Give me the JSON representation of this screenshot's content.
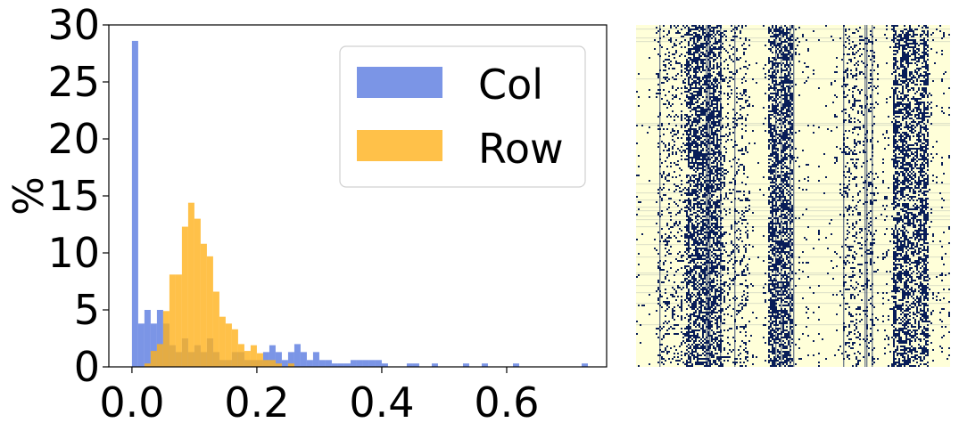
{
  "chart_data": [
    {
      "type": "bar",
      "subtype": "overlapping-histogram",
      "ylabel": "%",
      "xlabel": "",
      "xlim": [
        -0.037,
        0.76
      ],
      "ylim": [
        0,
        30
      ],
      "xticks": [
        0.0,
        0.2,
        0.4,
        0.6
      ],
      "xtick_labels": [
        "0.0",
        "0.2",
        "0.4",
        "0.6"
      ],
      "yticks": [
        0,
        5,
        10,
        15,
        20,
        25,
        30
      ],
      "ytick_labels": [
        "0",
        "5",
        "10",
        "15",
        "20",
        "25",
        "30"
      ],
      "bin_width": 0.01,
      "legend_position": "top-right",
      "grid": false,
      "series": [
        {
          "name": "Col",
          "color": "#5a7be0",
          "alpha": 0.8,
          "bins": [
            [
              0.0,
              28.6
            ],
            [
              0.01,
              3.8
            ],
            [
              0.02,
              5.0
            ],
            [
              0.03,
              3.8
            ],
            [
              0.04,
              5.0
            ],
            [
              0.05,
              3.8
            ],
            [
              0.06,
              1.9
            ],
            [
              0.07,
              1.3
            ],
            [
              0.08,
              2.5
            ],
            [
              0.09,
              1.3
            ],
            [
              0.1,
              1.9
            ],
            [
              0.11,
              1.3
            ],
            [
              0.12,
              2.5
            ],
            [
              0.13,
              1.3
            ],
            [
              0.14,
              0.6
            ],
            [
              0.15,
              0.6
            ],
            [
              0.16,
              1.3
            ],
            [
              0.17,
              1.3
            ],
            [
              0.18,
              0.6
            ],
            [
              0.19,
              0.6
            ],
            [
              0.2,
              0.6
            ],
            [
              0.21,
              1.3
            ],
            [
              0.22,
              1.9
            ],
            [
              0.23,
              1.3
            ],
            [
              0.24,
              0.6
            ],
            [
              0.25,
              1.3
            ],
            [
              0.26,
              2.0
            ],
            [
              0.27,
              1.3
            ],
            [
              0.28,
              0.6
            ],
            [
              0.29,
              1.3
            ],
            [
              0.3,
              0.6
            ],
            [
              0.31,
              0.6
            ],
            [
              0.32,
              0.3
            ],
            [
              0.33,
              0.3
            ],
            [
              0.34,
              0.3
            ],
            [
              0.35,
              0.6
            ],
            [
              0.36,
              0.6
            ],
            [
              0.37,
              0.6
            ],
            [
              0.38,
              0.6
            ],
            [
              0.39,
              0.6
            ],
            [
              0.4,
              0.3
            ],
            [
              0.44,
              0.3
            ],
            [
              0.45,
              0.3
            ],
            [
              0.48,
              0.3
            ],
            [
              0.53,
              0.3
            ],
            [
              0.56,
              0.3
            ],
            [
              0.61,
              0.3
            ],
            [
              0.72,
              0.3
            ]
          ]
        },
        {
          "name": "Row",
          "color": "#ffb11b",
          "alpha": 0.8,
          "bins": [
            [
              0.02,
              0.3
            ],
            [
              0.03,
              1.4
            ],
            [
              0.04,
              2.0
            ],
            [
              0.05,
              4.9
            ],
            [
              0.06,
              8.1
            ],
            [
              0.07,
              8.1
            ],
            [
              0.08,
              12.3
            ],
            [
              0.09,
              14.4
            ],
            [
              0.1,
              13.0
            ],
            [
              0.11,
              10.8
            ],
            [
              0.12,
              9.7
            ],
            [
              0.13,
              6.6
            ],
            [
              0.14,
              4.4
            ],
            [
              0.15,
              3.8
            ],
            [
              0.16,
              3.3
            ],
            [
              0.17,
              2.0
            ],
            [
              0.18,
              1.4
            ],
            [
              0.19,
              1.9
            ],
            [
              0.2,
              1.2
            ],
            [
              0.21,
              0.6
            ],
            [
              0.22,
              0.6
            ],
            [
              0.23,
              0.3
            ],
            [
              0.25,
              0.3
            ]
          ]
        }
      ]
    },
    {
      "type": "heatmap",
      "subtype": "binary-sparsity-pattern",
      "title": "",
      "xlabel": "",
      "ylabel": "",
      "axes_visible": false,
      "background_color": "#ffffd9",
      "foreground_color": "#081d58",
      "dense_column_bands": [
        [
          0.16,
          0.27
        ],
        [
          0.42,
          0.5
        ],
        [
          0.82,
          0.93
        ]
      ],
      "medium_column_bands": [
        [
          0.07,
          0.16
        ],
        [
          0.27,
          0.36
        ],
        [
          0.66,
          0.76
        ]
      ],
      "sparse_column_bands": [
        [
          0.0,
          0.07
        ],
        [
          0.36,
          0.42
        ],
        [
          0.5,
          0.66
        ],
        [
          0.76,
          0.82
        ],
        [
          0.93,
          1.0
        ]
      ]
    }
  ]
}
